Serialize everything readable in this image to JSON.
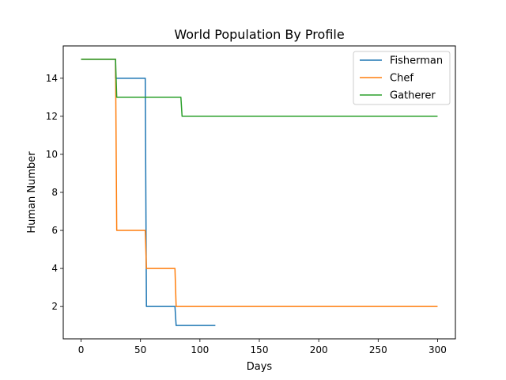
{
  "chart_data": {
    "type": "line",
    "title": "World Population By Profile",
    "xlabel": "Days",
    "ylabel": "Human Number",
    "xlim": [
      -15,
      315
    ],
    "ylim": [
      0.3,
      15.7
    ],
    "xticks": [
      0,
      50,
      100,
      150,
      200,
      250,
      300
    ],
    "yticks": [
      2,
      4,
      6,
      8,
      10,
      12,
      14
    ],
    "grid": false,
    "legend_position": "upper right",
    "series": [
      {
        "name": "Fisherman",
        "color": "#1f77b4",
        "x": [
          0,
          29,
          29,
          54,
          54,
          55,
          55,
          79,
          79,
          80,
          80,
          113
        ],
        "y": [
          15,
          15,
          14,
          14,
          14,
          2,
          2,
          2,
          2,
          1,
          1,
          1
        ]
      },
      {
        "name": "Chef",
        "color": "#ff7f0e",
        "x": [
          0,
          29,
          30,
          54,
          55,
          79,
          80,
          300
        ],
        "y": [
          15,
          15,
          6,
          6,
          4,
          4,
          2,
          2
        ]
      },
      {
        "name": "Gatherer",
        "color": "#2ca02c",
        "x": [
          0,
          29,
          30,
          84,
          85,
          300
        ],
        "y": [
          15,
          15,
          13,
          13,
          12,
          12
        ]
      }
    ]
  }
}
